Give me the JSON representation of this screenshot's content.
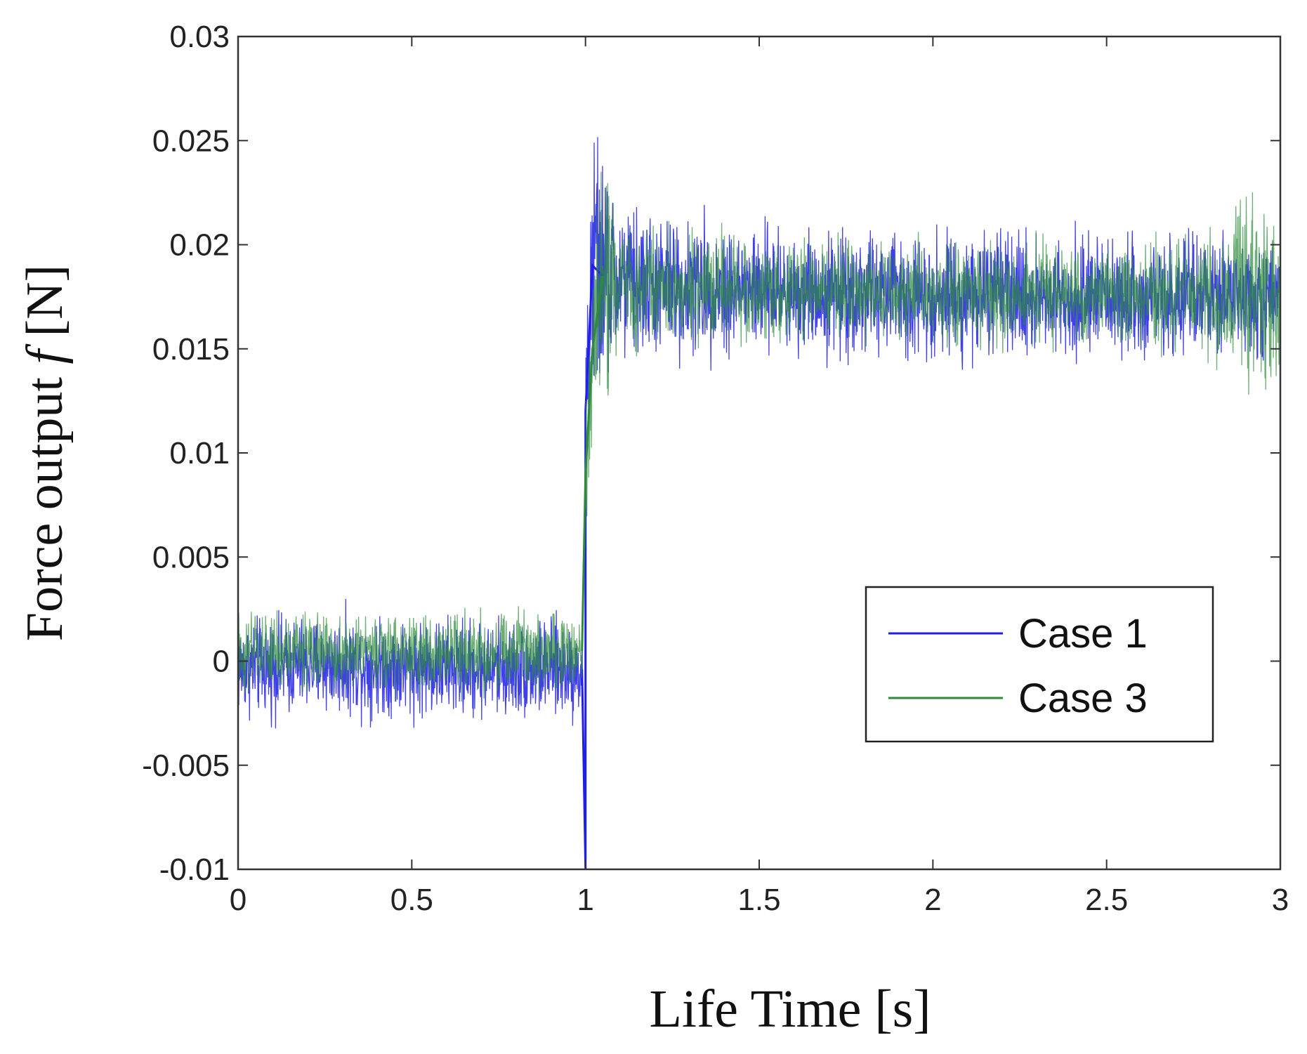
{
  "chart_data": {
    "type": "line",
    "title": "",
    "xlabel": "Life Time [s]",
    "ylabel_prefix": "Force output ",
    "ylabel_var": "f",
    "ylabel_unit": " [N]",
    "xlim": [
      0,
      3
    ],
    "ylim": [
      -0.01,
      0.03
    ],
    "xticks": [
      0,
      0.5,
      1,
      1.5,
      2,
      2.5,
      3
    ],
    "xtick_labels": [
      "0",
      "0.5",
      "1",
      "1.5",
      "2",
      "2.5",
      "3"
    ],
    "yticks": [
      -0.01,
      -0.005,
      0,
      0.005,
      0.01,
      0.015,
      0.02,
      0.025,
      0.03
    ],
    "ytick_labels": [
      "-0.01",
      "-0.005",
      "0",
      "0.005",
      "0.01",
      "0.015",
      "0.02",
      "0.025",
      "0.03"
    ],
    "grid": false,
    "legend_position": "bottom-right",
    "series": [
      {
        "name": "Case 1",
        "color": "#1f1fe6",
        "x": [
          0,
          0.25,
          0.5,
          0.75,
          0.99,
          1.0,
          1.0,
          1.02,
          1.05,
          1.1,
          1.2,
          1.5,
          2.0,
          2.5,
          2.8,
          3.0
        ],
        "mean": [
          -0.0003,
          -0.0002,
          -0.0003,
          -0.0004,
          -0.0004,
          -0.01,
          0.012,
          0.019,
          0.0185,
          0.0182,
          0.018,
          0.0178,
          0.0176,
          0.0175,
          0.0174,
          0.0173
        ],
        "noise": [
          0.0011,
          0.0011,
          0.0011,
          0.0011,
          0.0011,
          0.0,
          0.002,
          0.0035,
          0.0025,
          0.0018,
          0.0016,
          0.0014,
          0.0014,
          0.0013,
          0.0013,
          0.0013
        ]
      },
      {
        "name": "Case 3",
        "color": "#2e8b3a",
        "x": [
          0,
          0.25,
          0.5,
          0.75,
          0.99,
          1.0,
          1.02,
          1.05,
          1.1,
          1.2,
          1.5,
          2.0,
          2.5,
          2.85,
          2.9,
          3.0
        ],
        "mean": [
          0.0003,
          0.0005,
          0.0004,
          0.0004,
          0.0005,
          0.009,
          0.015,
          0.0185,
          0.018,
          0.018,
          0.0178,
          0.0177,
          0.0176,
          0.0175,
          0.0178,
          0.0174
        ],
        "noise": [
          0.0009,
          0.0009,
          0.0009,
          0.0009,
          0.0009,
          0.002,
          0.003,
          0.0028,
          0.0014,
          0.0012,
          0.0011,
          0.0011,
          0.0011,
          0.0015,
          0.0028,
          0.0016
        ]
      }
    ]
  }
}
